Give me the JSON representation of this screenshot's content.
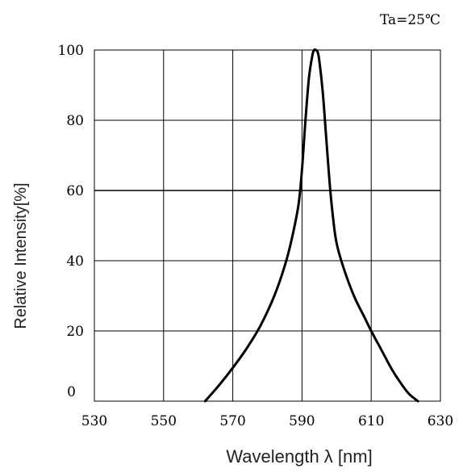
{
  "chart_data": {
    "type": "line",
    "title": "",
    "annotation": "Ta=25℃",
    "xlabel": "Wavelength λ [nm]",
    "ylabel": "Relative Intensity[%]",
    "xlim": [
      530,
      630
    ],
    "ylim": [
      0,
      100
    ],
    "xticks": [
      530,
      550,
      570,
      590,
      610,
      630
    ],
    "yticks": [
      0,
      20,
      40,
      60,
      80,
      100
    ],
    "grid": true,
    "legend": "none",
    "series": [
      {
        "color": "#000000",
        "x": [
          562,
          566,
          570,
          574,
          578,
          582,
          585,
          587,
          589,
          590,
          591,
          592,
          593,
          593.5,
          594,
          594.5,
          595,
          596,
          597,
          598,
          599,
          600,
          602,
          605,
          608,
          610,
          613,
          616,
          619,
          621,
          623.5
        ],
        "y": [
          0,
          4.5,
          9.5,
          15,
          21.5,
          30,
          38.5,
          46,
          56,
          66,
          80,
          92,
          98.5,
          100,
          100,
          99.5,
          97,
          88,
          75,
          62,
          52,
          45,
          38,
          30,
          24,
          20,
          14.5,
          9,
          4.5,
          2,
          0
        ]
      }
    ]
  }
}
